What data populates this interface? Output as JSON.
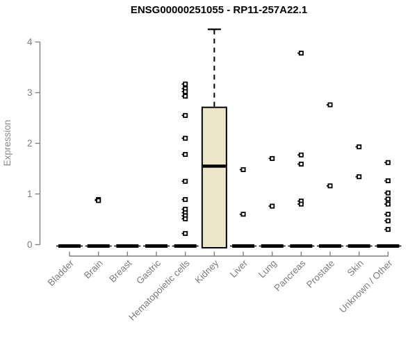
{
  "page": {
    "background": "#ffffff"
  },
  "chart_data": {
    "type": "boxplot",
    "title": "ENSG00000251055 - RP11-257A22.1",
    "ylabel": "Expression",
    "xlabel": "",
    "ylim": [
      0,
      4
    ],
    "yticks": [
      0,
      1,
      2,
      3,
      4
    ],
    "grid": false,
    "legend": null,
    "categories": [
      "Bladder",
      "Brain",
      "Breast",
      "Gastric",
      "Hematopoietic cells",
      "Kidney",
      "Liver",
      "Lung",
      "Pancreas",
      "Prostate",
      "Skin",
      "Unknown / Other"
    ],
    "boxes": [
      {
        "category": "Bladder",
        "q1": 0,
        "median": 0,
        "q3": 0,
        "whisker_low": 0,
        "whisker_high": 0,
        "outliers": []
      },
      {
        "category": "Brain",
        "q1": 0,
        "median": 0,
        "q3": 0,
        "whisker_low": 0,
        "whisker_high": 0,
        "outliers": [
          0.89,
          0.87
        ]
      },
      {
        "category": "Breast",
        "q1": 0,
        "median": 0,
        "q3": 0,
        "whisker_low": 0,
        "whisker_high": 0,
        "outliers": []
      },
      {
        "category": "Gastric",
        "q1": 0,
        "median": 0,
        "q3": 0,
        "whisker_low": 0,
        "whisker_high": 0,
        "outliers": []
      },
      {
        "category": "Hematopoietic cells",
        "q1": 0,
        "median": 0,
        "q3": 0,
        "whisker_low": 0,
        "whisker_high": 0,
        "outliers": [
          3.17,
          3.08,
          3.02,
          2.93,
          2.55,
          2.1,
          1.78,
          1.25,
          0.89,
          0.7,
          0.63,
          0.57,
          0.51,
          0.22
        ]
      },
      {
        "category": "Kidney",
        "q1": 0,
        "median": 1.55,
        "q3": 2.71,
        "whisker_low": 0,
        "whisker_high": 4.25,
        "outliers": []
      },
      {
        "category": "Liver",
        "q1": 0,
        "median": 0,
        "q3": 0,
        "whisker_low": 0,
        "whisker_high": 0,
        "outliers": [
          1.48,
          0.6
        ]
      },
      {
        "category": "Lung",
        "q1": 0,
        "median": 0,
        "q3": 0,
        "whisker_low": 0,
        "whisker_high": 0,
        "outliers": [
          1.7,
          0.76
        ]
      },
      {
        "category": "Pancreas",
        "q1": 0,
        "median": 0,
        "q3": 0,
        "whisker_low": 0,
        "whisker_high": 0,
        "outliers": [
          3.78,
          1.77,
          1.59,
          0.86,
          0.8
        ]
      },
      {
        "category": "Prostate",
        "q1": 0,
        "median": 0,
        "q3": 0,
        "whisker_low": 0,
        "whisker_high": 0,
        "outliers": [
          2.76,
          1.16
        ]
      },
      {
        "category": "Skin",
        "q1": 0,
        "median": 0,
        "q3": 0,
        "whisker_low": 0,
        "whisker_high": 0,
        "outliers": [
          1.93,
          1.34
        ]
      },
      {
        "category": "Unknown / Other",
        "q1": 0,
        "median": 0,
        "q3": 0,
        "whisker_low": 0,
        "whisker_high": 0,
        "outliers": [
          1.62,
          1.26,
          1.02,
          0.9,
          0.8,
          0.6,
          0.47,
          0.3
        ]
      }
    ],
    "colors": {
      "box_fill": "#ebe5ca",
      "box_border": "#000000",
      "median": "#000000",
      "whisker": "#000000",
      "point_stroke": "#000000",
      "point_fill": "#ffffff",
      "axis": "#7f7f7f",
      "tick_label": "#7d7d7d",
      "axis_label": "#8b8b8b",
      "title": "#000000",
      "background": "#ffffff"
    }
  }
}
